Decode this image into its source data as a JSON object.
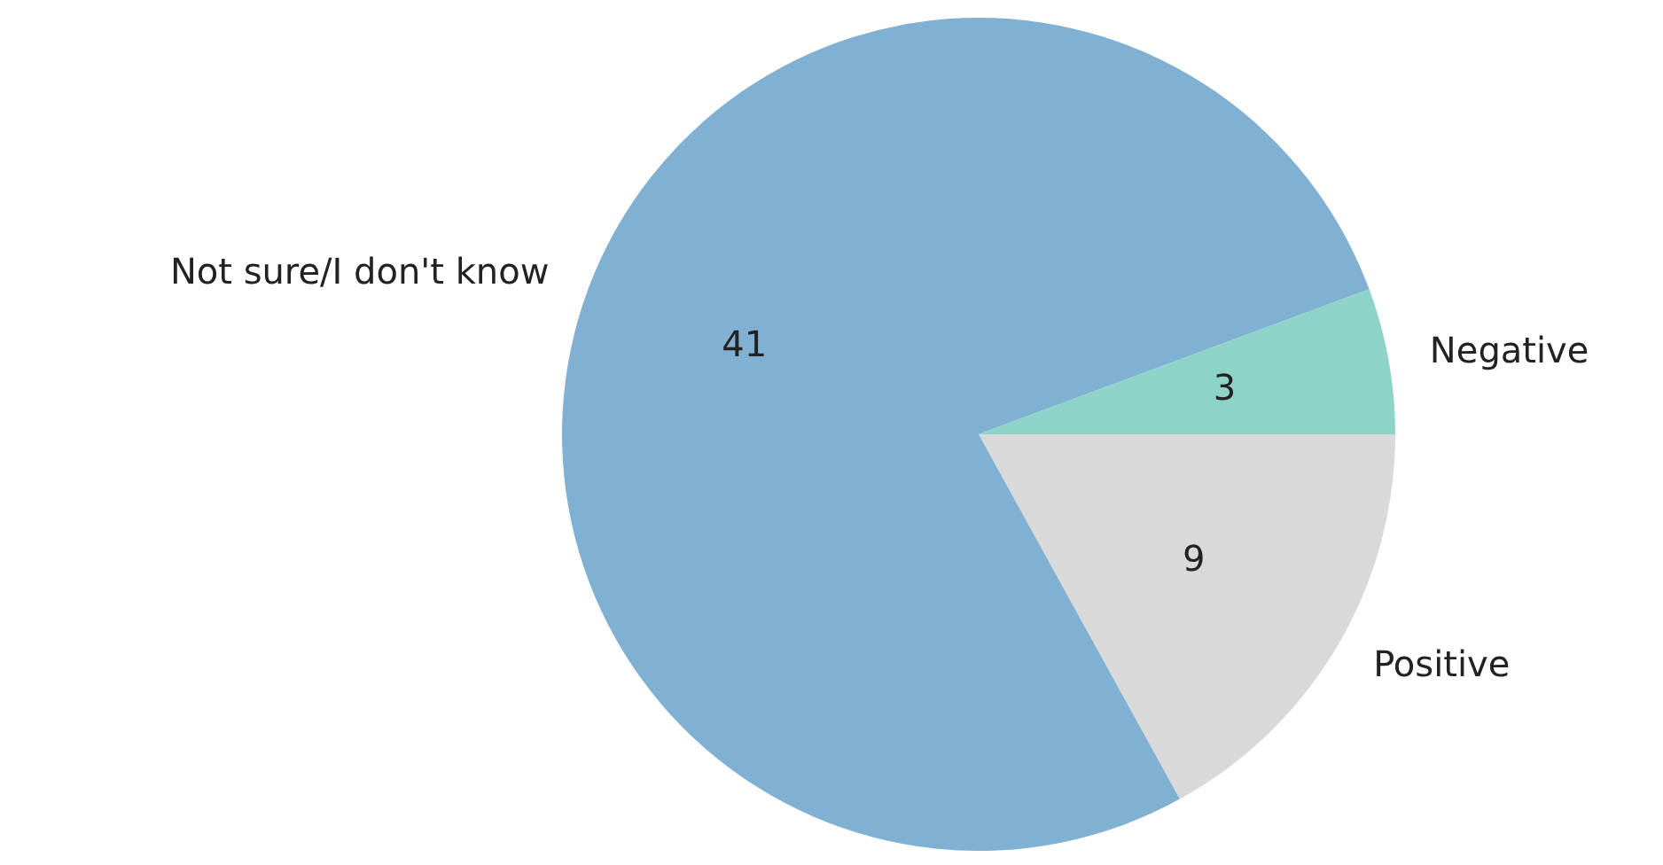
{
  "chart_data": {
    "type": "pie",
    "categories": [
      "Negative",
      "Not sure/I don't know",
      "Positive"
    ],
    "values": [
      3,
      41,
      9
    ],
    "colors": [
      "#8dd3c7",
      "#80b1d3",
      "#d9d9d9"
    ],
    "data_labels": true
  }
}
